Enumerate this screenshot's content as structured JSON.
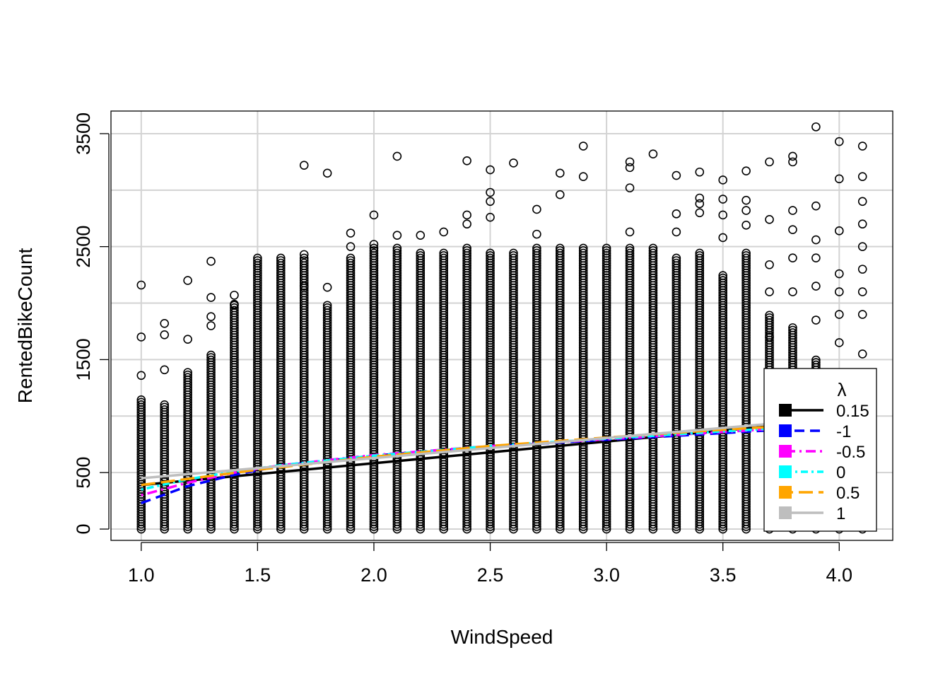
{
  "chart_data": {
    "type": "scatter",
    "title": "",
    "xlabel": "WindSpeed",
    "ylabel": "RentedBikeCount",
    "xlim": [
      0.87,
      4.23
    ],
    "ylim": [
      -100,
      3700
    ],
    "xticks": [
      1.0,
      1.5,
      2.0,
      2.5,
      3.0,
      3.5,
      4.0
    ],
    "xtick_labels": [
      "1.0",
      "1.5",
      "2.0",
      "2.5",
      "3.0",
      "3.5",
      "4.0"
    ],
    "yticks": [
      0,
      500,
      1500,
      2500,
      3500
    ],
    "ytick_labels": [
      "0",
      "500",
      "1500",
      "2500",
      "3500"
    ],
    "ygrid": [
      0,
      500,
      1000,
      1500,
      2000,
      2500,
      3000,
      3500
    ],
    "grid": true,
    "point_color": "#000000",
    "points": {
      "x_values": [
        1.0,
        1.1,
        1.2,
        1.3,
        1.4,
        1.5,
        1.6,
        1.7,
        1.8,
        1.9,
        2.0,
        2.1,
        2.2,
        2.3,
        2.4,
        2.5,
        2.6,
        2.7,
        2.8,
        2.9,
        3.0,
        3.1,
        3.2,
        3.3,
        3.4,
        3.5,
        3.6,
        3.7,
        3.8,
        3.9,
        4.0,
        4.1
      ],
      "dense_top": [
        1150,
        1100,
        1400,
        1550,
        2000,
        2400,
        2400,
        2400,
        2000,
        2400,
        2500,
        2500,
        2450,
        2450,
        2500,
        2450,
        2450,
        2500,
        2500,
        2500,
        2500,
        2500,
        2500,
        2400,
        2450,
        2250,
        2450,
        1900,
        1800,
        1500,
        1300,
        1350
      ],
      "outliers": [
        [
          1.0,
          2160
        ],
        [
          1.0,
          1700
        ],
        [
          1.0,
          1360
        ],
        [
          1.1,
          1820
        ],
        [
          1.1,
          1720
        ],
        [
          1.1,
          1410
        ],
        [
          1.2,
          2200
        ],
        [
          1.2,
          1680
        ],
        [
          1.3,
          2370
        ],
        [
          1.3,
          2050
        ],
        [
          1.3,
          1880
        ],
        [
          1.3,
          1800
        ],
        [
          1.4,
          2070
        ],
        [
          1.4,
          1990
        ],
        [
          1.7,
          3220
        ],
        [
          1.7,
          2430
        ],
        [
          1.7,
          2150
        ],
        [
          1.8,
          3150
        ],
        [
          1.8,
          2140
        ],
        [
          1.9,
          2620
        ],
        [
          1.9,
          2500
        ],
        [
          2.0,
          2780
        ],
        [
          2.0,
          2520
        ],
        [
          2.1,
          3300
        ],
        [
          2.1,
          2600
        ],
        [
          2.2,
          2600
        ],
        [
          2.3,
          2630
        ],
        [
          2.4,
          3260
        ],
        [
          2.4,
          2780
        ],
        [
          2.4,
          2700
        ],
        [
          2.5,
          3180
        ],
        [
          2.5,
          2980
        ],
        [
          2.5,
          2900
        ],
        [
          2.5,
          2760
        ],
        [
          2.6,
          3240
        ],
        [
          2.7,
          2830
        ],
        [
          2.7,
          2610
        ],
        [
          2.8,
          3150
        ],
        [
          2.8,
          2960
        ],
        [
          2.9,
          3390
        ],
        [
          2.9,
          3120
        ],
        [
          3.1,
          3250
        ],
        [
          3.1,
          3200
        ],
        [
          3.1,
          3020
        ],
        [
          3.1,
          2630
        ],
        [
          3.2,
          3320
        ],
        [
          3.3,
          3130
        ],
        [
          3.3,
          2790
        ],
        [
          3.3,
          2630
        ],
        [
          3.4,
          3160
        ],
        [
          3.4,
          2930
        ],
        [
          3.4,
          2880
        ],
        [
          3.4,
          2800
        ],
        [
          3.5,
          3090
        ],
        [
          3.5,
          2920
        ],
        [
          3.5,
          2780
        ],
        [
          3.5,
          2580
        ],
        [
          3.6,
          3170
        ],
        [
          3.6,
          2910
        ],
        [
          3.6,
          2820
        ],
        [
          3.6,
          2690
        ],
        [
          3.7,
          3250
        ],
        [
          3.7,
          2740
        ],
        [
          3.7,
          2340
        ],
        [
          3.7,
          2100
        ],
        [
          3.7,
          1700
        ],
        [
          3.8,
          3300
        ],
        [
          3.8,
          3250
        ],
        [
          3.8,
          2820
        ],
        [
          3.8,
          2650
        ],
        [
          3.8,
          2400
        ],
        [
          3.8,
          2100
        ],
        [
          3.9,
          3560
        ],
        [
          3.9,
          2860
        ],
        [
          3.9,
          2560
        ],
        [
          3.9,
          2400
        ],
        [
          3.9,
          2150
        ],
        [
          3.9,
          1850
        ],
        [
          4.0,
          3430
        ],
        [
          4.0,
          3100
        ],
        [
          4.0,
          2640
        ],
        [
          4.0,
          2260
        ],
        [
          4.0,
          2100
        ],
        [
          4.0,
          1900
        ],
        [
          4.0,
          1650
        ],
        [
          4.1,
          3390
        ],
        [
          4.1,
          3120
        ],
        [
          4.1,
          2900
        ],
        [
          4.1,
          2700
        ],
        [
          4.1,
          2500
        ],
        [
          4.1,
          2300
        ],
        [
          4.1,
          2100
        ],
        [
          4.1,
          1900
        ],
        [
          4.1,
          1550
        ]
      ]
    },
    "series": [
      {
        "name": "0.15",
        "color": "#000000",
        "dash": "solid",
        "x": [
          1.0,
          3.75
        ],
        "y": [
          390,
          920
        ]
      },
      {
        "name": "-1",
        "color": "#0000ff",
        "dash": "dashed",
        "x": [
          1.0,
          1.2,
          1.4,
          1.6,
          2.0,
          2.5,
          3.0,
          3.5,
          3.75
        ],
        "y": [
          230,
          380,
          480,
          560,
          650,
          730,
          790,
          850,
          880
        ]
      },
      {
        "name": "-0.5",
        "color": "#ff00ff",
        "dash": "dotdash",
        "x": [
          1.0,
          1.2,
          1.4,
          1.6,
          2.0,
          2.5,
          3.0,
          3.5,
          3.75
        ],
        "y": [
          300,
          410,
          500,
          565,
          655,
          735,
          795,
          860,
          890
        ]
      },
      {
        "name": "0",
        "color": "#00ffff",
        "dash": "dotdash2",
        "x": [
          1.0,
          1.2,
          1.4,
          1.6,
          2.0,
          2.5,
          3.0,
          3.5,
          3.75
        ],
        "y": [
          350,
          440,
          510,
          565,
          650,
          735,
          800,
          865,
          895
        ]
      },
      {
        "name": "0.5",
        "color": "#ffa500",
        "dash": "longdash",
        "x": [
          1.0,
          1.5,
          2.0,
          2.5,
          3.0,
          3.5,
          3.75
        ],
        "y": [
          390,
          525,
          640,
          735,
          810,
          880,
          910
        ]
      },
      {
        "name": "1",
        "color": "#bebebe",
        "dash": "solid",
        "x": [
          1.0,
          3.75
        ],
        "y": [
          450,
          940
        ]
      }
    ],
    "legend": {
      "title": "λ",
      "position": "bottom-right",
      "entries": [
        "0.15",
        "-1",
        "-0.5",
        "0",
        "0.5",
        "1"
      ]
    }
  }
}
